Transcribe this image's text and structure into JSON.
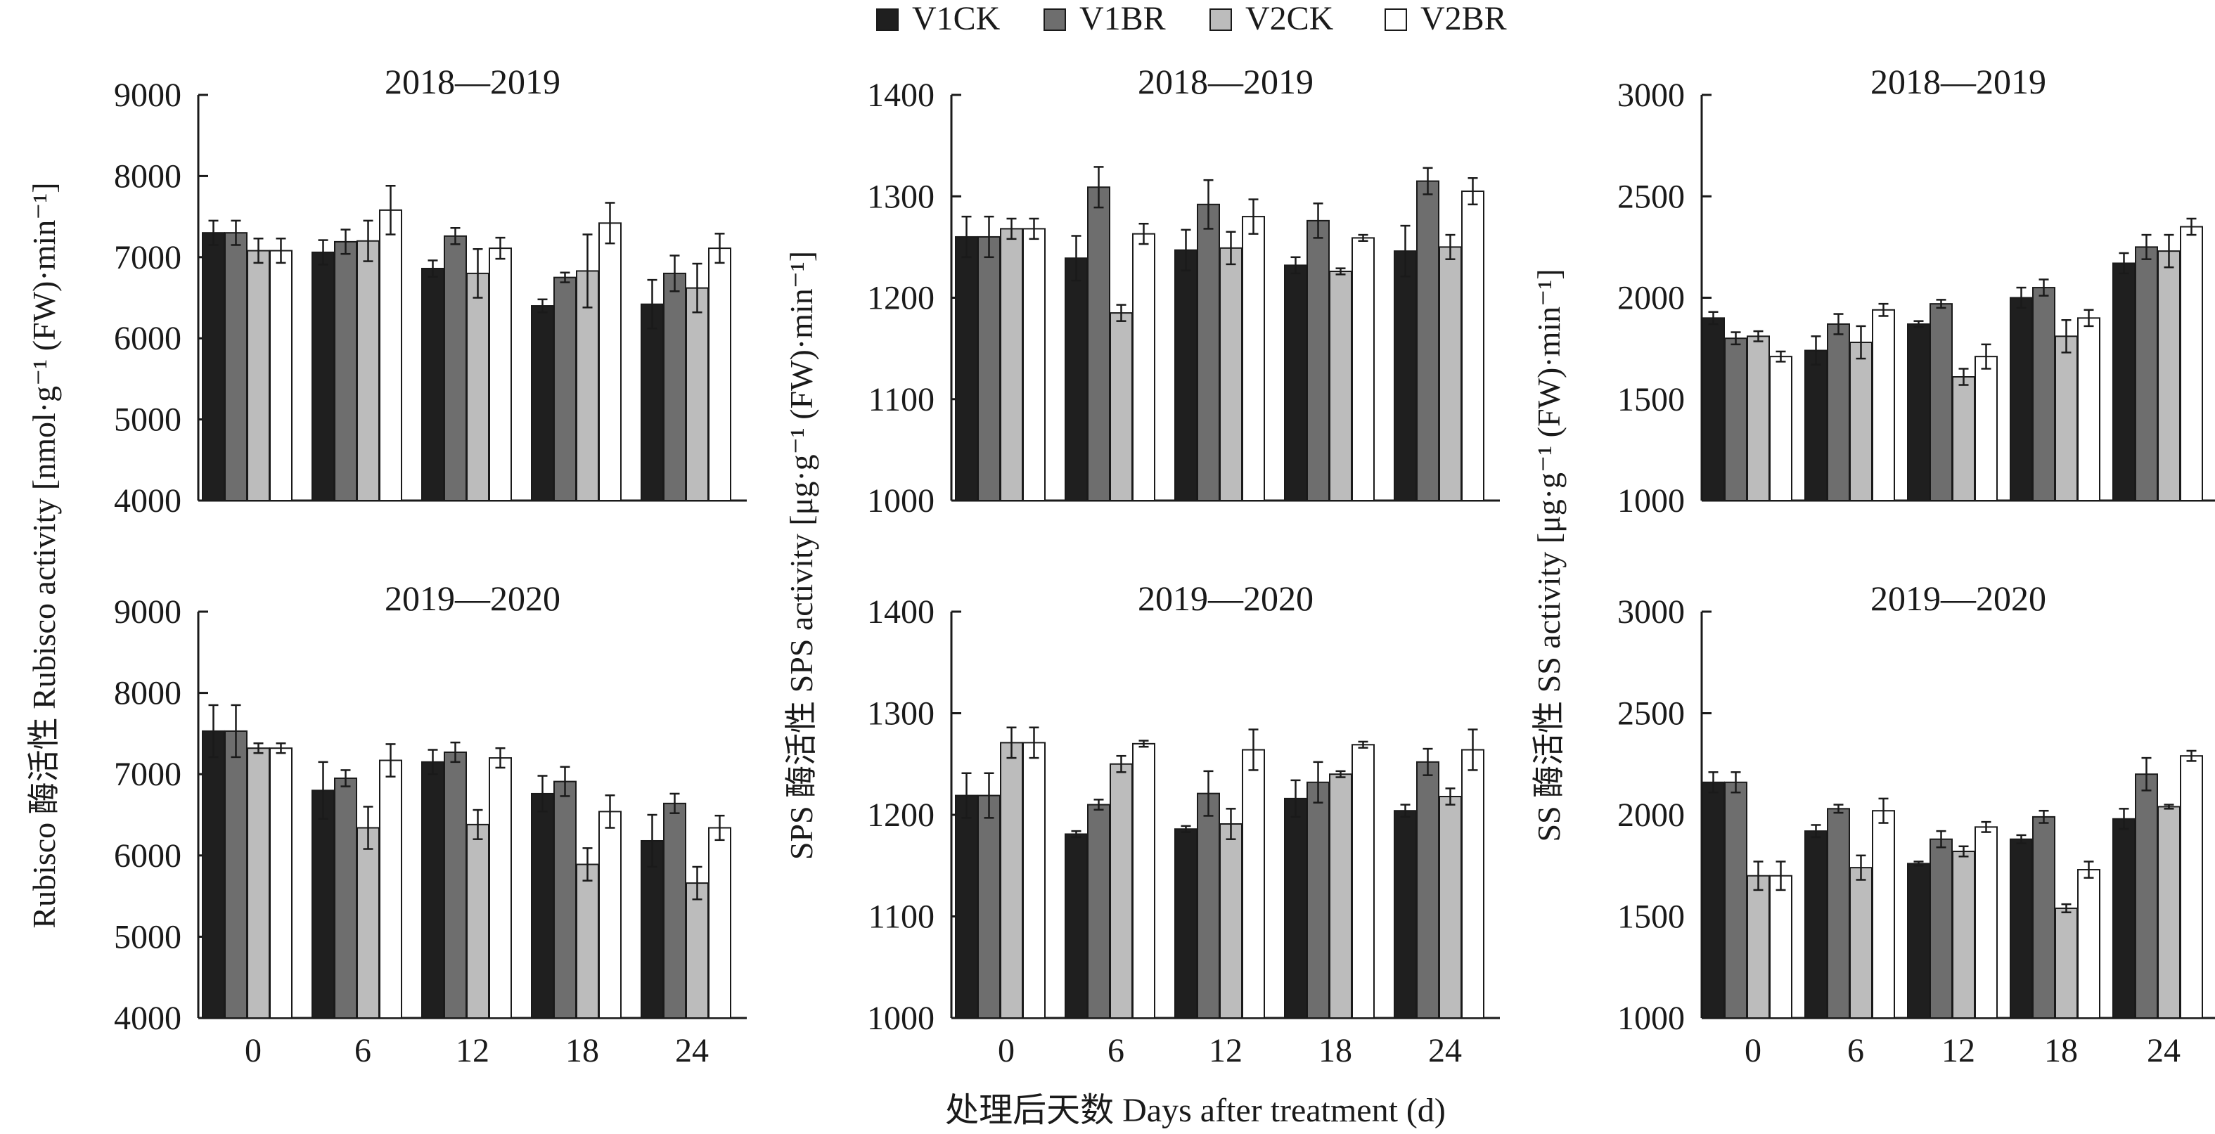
{
  "legend": [
    {
      "name": "V1CK",
      "color": "#1f1f1f"
    },
    {
      "name": "V1BR",
      "color": "#6e6e6e"
    },
    {
      "name": "V2CK",
      "color": "#bcbcbc"
    },
    {
      "name": "V2BR",
      "color": "#ffffff"
    }
  ],
  "x_axis_label": "处理后天数 Days after treatment (d)",
  "chart_data": [
    {
      "type": "bar",
      "title": "2018—2019",
      "ylabel": "Rubisco 酶活性 Rubisco activity [nmol·g⁻¹ (FW)·min⁻¹]",
      "categories": [
        "0",
        "6",
        "12",
        "18",
        "24"
      ],
      "ylim": [
        4000,
        9000
      ],
      "yticks": [
        4000,
        5000,
        6000,
        7000,
        8000,
        9000
      ],
      "series": [
        {
          "name": "V1CK",
          "values": [
            7300,
            7060,
            6860,
            6400,
            6420
          ],
          "errors": [
            150,
            150,
            100,
            80,
            300
          ]
        },
        {
          "name": "V1BR",
          "values": [
            7300,
            7190,
            7260,
            6750,
            6800
          ],
          "errors": [
            150,
            150,
            100,
            60,
            220
          ]
        },
        {
          "name": "V2CK",
          "values": [
            7080,
            7200,
            6800,
            6830,
            6620
          ],
          "errors": [
            150,
            250,
            300,
            450,
            300
          ]
        },
        {
          "name": "V2BR",
          "values": [
            7080,
            7580,
            7110,
            7420,
            7110
          ],
          "errors": [
            150,
            300,
            130,
            250,
            180
          ]
        }
      ]
    },
    {
      "type": "bar",
      "title": "2018—2019",
      "ylabel": "SPS 酶活性 SPS activity [μg·g⁻¹ (FW)·min⁻¹]",
      "categories": [
        "0",
        "6",
        "12",
        "18",
        "24"
      ],
      "ylim": [
        1000,
        1400
      ],
      "yticks": [
        1000,
        1100,
        1200,
        1300,
        1400
      ],
      "series": [
        {
          "name": "V1CK",
          "values": [
            1260,
            1239,
            1247,
            1232,
            1246
          ],
          "errors": [
            20,
            22,
            20,
            8,
            25
          ]
        },
        {
          "name": "V1BR",
          "values": [
            1260,
            1309,
            1292,
            1276,
            1315
          ],
          "errors": [
            20,
            20,
            24,
            17,
            13
          ]
        },
        {
          "name": "V2CK",
          "values": [
            1268,
            1185,
            1249,
            1226,
            1250
          ],
          "errors": [
            10,
            8,
            16,
            3,
            12
          ]
        },
        {
          "name": "V2BR",
          "values": [
            1268,
            1263,
            1280,
            1259,
            1305
          ],
          "errors": [
            10,
            10,
            17,
            3,
            13
          ]
        }
      ]
    },
    {
      "type": "bar",
      "title": "2018—2019",
      "ylabel": "SS 酶活性 SS activity [μg·g⁻¹ (FW)·min⁻¹]",
      "categories": [
        "0",
        "6",
        "12",
        "18",
        "24"
      ],
      "ylim": [
        1000,
        3000
      ],
      "yticks": [
        1000,
        1500,
        2000,
        2500,
        3000
      ],
      "series": [
        {
          "name": "V1CK",
          "values": [
            1900,
            1740,
            1870,
            2000,
            2170
          ],
          "errors": [
            30,
            70,
            15,
            50,
            50
          ]
        },
        {
          "name": "V1BR",
          "values": [
            1800,
            1870,
            1970,
            2050,
            2250
          ],
          "errors": [
            30,
            50,
            20,
            40,
            60
          ]
        },
        {
          "name": "V2CK",
          "values": [
            1810,
            1780,
            1610,
            1810,
            2230
          ],
          "errors": [
            25,
            80,
            40,
            80,
            80
          ]
        },
        {
          "name": "V2BR",
          "values": [
            1710,
            1940,
            1710,
            1900,
            2350
          ],
          "errors": [
            25,
            30,
            60,
            40,
            40
          ]
        }
      ]
    },
    {
      "type": "bar",
      "title": "2019—2020",
      "ylabel": "Rubisco 酶活性 Rubisco activity [nmol·g⁻¹ (FW)·min⁻¹]",
      "categories": [
        "0",
        "6",
        "12",
        "18",
        "24"
      ],
      "ylim": [
        4000,
        9000
      ],
      "yticks": [
        4000,
        5000,
        6000,
        7000,
        8000,
        9000
      ],
      "series": [
        {
          "name": "V1CK",
          "values": [
            7530,
            6800,
            7150,
            6760,
            6180
          ],
          "errors": [
            320,
            350,
            150,
            220,
            320
          ]
        },
        {
          "name": "V1BR",
          "values": [
            7530,
            6950,
            7270,
            6910,
            6640
          ],
          "errors": [
            320,
            100,
            120,
            180,
            120
          ]
        },
        {
          "name": "V2CK",
          "values": [
            7320,
            6340,
            6380,
            5890,
            5660
          ],
          "errors": [
            60,
            260,
            180,
            200,
            200
          ]
        },
        {
          "name": "V2BR",
          "values": [
            7320,
            7170,
            7200,
            6540,
            6340
          ],
          "errors": [
            60,
            200,
            120,
            200,
            150
          ]
        }
      ]
    },
    {
      "type": "bar",
      "title": "2019—2020",
      "ylabel": "SPS 酶活性 SPS activity [μg·g⁻¹ (FW)·min⁻¹]",
      "categories": [
        "0",
        "6",
        "12",
        "18",
        "24"
      ],
      "ylim": [
        1000,
        1400
      ],
      "yticks": [
        1000,
        1100,
        1200,
        1300,
        1400
      ],
      "series": [
        {
          "name": "V1CK",
          "values": [
            1219,
            1181,
            1186,
            1216,
            1204
          ],
          "errors": [
            22,
            3,
            3,
            18,
            6
          ]
        },
        {
          "name": "V1BR",
          "values": [
            1219,
            1210,
            1221,
            1232,
            1252
          ],
          "errors": [
            22,
            5,
            22,
            20,
            13
          ]
        },
        {
          "name": "V2CK",
          "values": [
            1271,
            1250,
            1191,
            1240,
            1218
          ],
          "errors": [
            15,
            8,
            15,
            3,
            8
          ]
        },
        {
          "name": "V2BR",
          "values": [
            1271,
            1270,
            1264,
            1269,
            1264
          ],
          "errors": [
            15,
            3,
            20,
            3,
            20
          ]
        }
      ]
    },
    {
      "type": "bar",
      "title": "2019—2020",
      "ylabel": "SS 酶活性 SS activity [μg·g⁻¹ (FW)·min⁻¹]",
      "categories": [
        "0",
        "6",
        "12",
        "18",
        "24"
      ],
      "ylim": [
        1000,
        3000
      ],
      "yticks": [
        1000,
        1500,
        2000,
        2500,
        3000
      ],
      "series": [
        {
          "name": "V1CK",
          "values": [
            2160,
            1920,
            1760,
            1880,
            1980
          ],
          "errors": [
            50,
            30,
            10,
            20,
            50
          ]
        },
        {
          "name": "V1BR",
          "values": [
            2160,
            2030,
            1880,
            1990,
            2200
          ],
          "errors": [
            50,
            20,
            40,
            30,
            80
          ]
        },
        {
          "name": "V2CK",
          "values": [
            1700,
            1740,
            1820,
            1540,
            2040
          ],
          "errors": [
            70,
            60,
            25,
            20,
            10
          ]
        },
        {
          "name": "V2BR",
          "values": [
            1700,
            2020,
            1940,
            1730,
            2290
          ],
          "errors": [
            70,
            60,
            25,
            40,
            25
          ]
        }
      ]
    }
  ]
}
